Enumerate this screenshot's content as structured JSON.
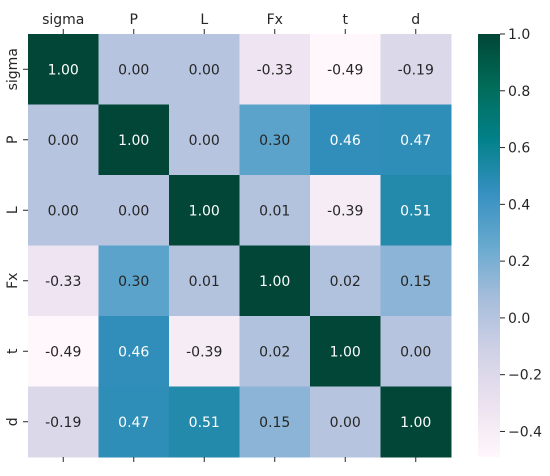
{
  "chart_data": {
    "type": "heatmap",
    "title": "",
    "xlabel": "",
    "ylabel": "",
    "x_labels": [
      "sigma",
      "P",
      "L",
      "Fx",
      "t",
      "d"
    ],
    "y_labels": [
      "sigma",
      "P",
      "L",
      "Fx",
      "t",
      "d"
    ],
    "values": [
      [
        1.0,
        0.0,
        0.0,
        -0.33,
        -0.49,
        -0.19
      ],
      [
        0.0,
        1.0,
        0.0,
        0.3,
        0.46,
        0.47
      ],
      [
        0.0,
        0.0,
        1.0,
        0.01,
        -0.39,
        0.51
      ],
      [
        -0.33,
        0.3,
        0.01,
        1.0,
        0.02,
        0.15
      ],
      [
        -0.49,
        0.46,
        -0.39,
        0.02,
        1.0,
        0.0
      ],
      [
        -0.19,
        0.47,
        0.51,
        0.15,
        0.0,
        1.0
      ]
    ],
    "value_format": "2 decimals",
    "colormap": "PuBuGn",
    "color_stops": [
      "#fff7fb",
      "#ece2f0",
      "#d0d1e6",
      "#a6bddb",
      "#67a9cf",
      "#3690c0",
      "#02818a",
      "#016c59",
      "#014636"
    ],
    "color_range": [
      -0.49,
      1.0
    ],
    "colorbar": {
      "ticks": [
        "1.0",
        "0.8",
        "0.6",
        "0.4",
        "0.2",
        "0.0",
        "−0.2",
        "−0.4"
      ],
      "tick_values": [
        1.0,
        0.8,
        0.6,
        0.4,
        0.2,
        0.0,
        -0.2,
        -0.4
      ],
      "position": "right"
    },
    "grid": false
  }
}
